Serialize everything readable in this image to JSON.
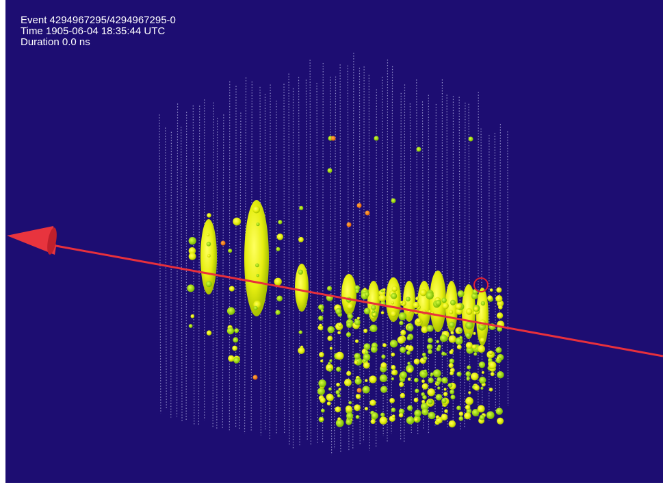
{
  "overlay": {
    "event": "Event 4294967295/4294967295-0",
    "time": "Time 1905-06-04 18:35:44 UTC",
    "duration": "Duration 0.0 ns"
  }
}
